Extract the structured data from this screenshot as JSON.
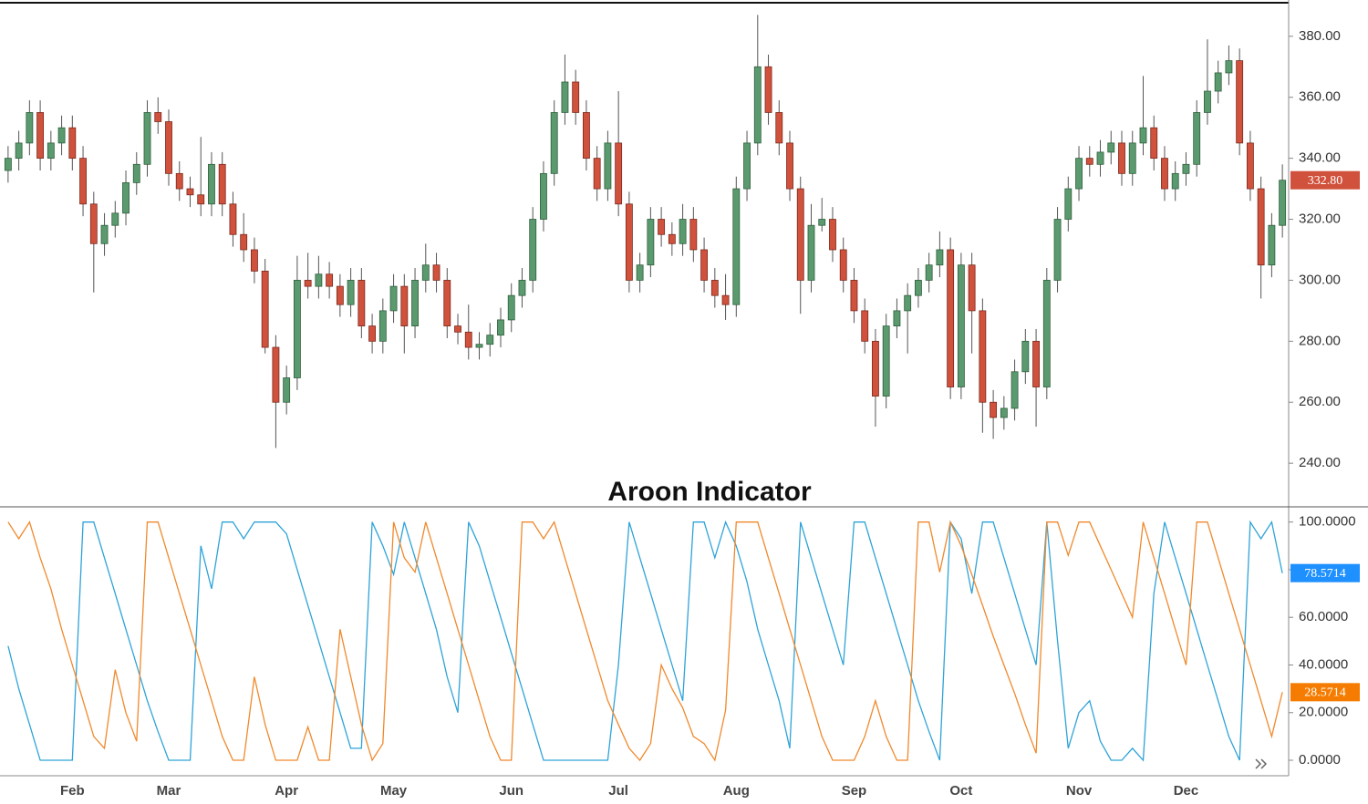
{
  "chart_data": [
    {
      "type": "candlestick",
      "up_color": "#5b9a6f",
      "down_color": "#d0513c",
      "ylim": [
        226,
        391
      ],
      "yticks": [
        {
          "value": 240,
          "label": "240.00"
        },
        {
          "value": 260,
          "label": "260.00"
        },
        {
          "value": 280,
          "label": "280.00"
        },
        {
          "value": 300,
          "label": "300.00"
        },
        {
          "value": 320,
          "label": "320.00"
        },
        {
          "value": 340,
          "label": "340.00"
        },
        {
          "value": 360,
          "label": "360.00"
        },
        {
          "value": 380,
          "label": "380.00"
        }
      ],
      "last_price": {
        "value": 332.8,
        "label": "332.80"
      },
      "ohlc": [
        [
          336,
          344,
          332,
          340
        ],
        [
          340,
          349,
          336,
          345
        ],
        [
          345,
          359,
          341,
          355
        ],
        [
          355,
          359,
          336,
          340
        ],
        [
          340,
          349,
          336,
          345
        ],
        [
          345,
          354,
          341,
          350
        ],
        [
          350,
          354,
          336,
          340
        ],
        [
          340,
          344,
          321,
          325
        ],
        [
          325,
          329,
          296,
          312
        ],
        [
          312,
          322,
          308,
          318
        ],
        [
          318,
          326,
          314,
          322
        ],
        [
          322,
          336,
          318,
          332
        ],
        [
          332,
          342,
          328,
          338
        ],
        [
          338,
          359,
          334,
          355
        ],
        [
          355,
          360,
          348,
          352
        ],
        [
          352,
          356,
          331,
          335
        ],
        [
          335,
          339,
          326,
          330
        ],
        [
          330,
          334,
          324,
          328
        ],
        [
          328,
          347,
          321,
          325
        ],
        [
          325,
          342,
          321,
          338
        ],
        [
          338,
          342,
          321,
          325
        ],
        [
          325,
          329,
          311,
          315
        ],
        [
          315,
          322,
          306,
          310
        ],
        [
          310,
          314,
          299,
          303
        ],
        [
          303,
          307,
          276,
          278
        ],
        [
          278,
          282,
          245,
          260
        ],
        [
          260,
          272,
          256,
          268
        ],
        [
          268,
          308,
          264,
          300
        ],
        [
          300,
          309,
          294,
          298
        ],
        [
          298,
          308,
          294,
          302
        ],
        [
          302,
          306,
          294,
          298
        ],
        [
          298,
          302,
          288,
          292
        ],
        [
          292,
          304,
          288,
          300
        ],
        [
          300,
          304,
          281,
          285
        ],
        [
          285,
          289,
          276,
          280
        ],
        [
          280,
          294,
          276,
          290
        ],
        [
          290,
          302,
          286,
          298
        ],
        [
          298,
          302,
          276,
          285
        ],
        [
          285,
          304,
          281,
          300
        ],
        [
          300,
          312,
          296,
          305
        ],
        [
          305,
          309,
          296,
          300
        ],
        [
          300,
          304,
          281,
          285
        ],
        [
          285,
          289,
          279,
          283
        ],
        [
          283,
          292,
          274,
          278
        ],
        [
          278,
          283,
          274,
          279
        ],
        [
          279,
          286,
          275,
          282
        ],
        [
          282,
          291,
          278,
          287
        ],
        [
          287,
          299,
          283,
          295
        ],
        [
          295,
          304,
          291,
          300
        ],
        [
          300,
          324,
          296,
          320
        ],
        [
          320,
          339,
          316,
          335
        ],
        [
          335,
          359,
          331,
          355
        ],
        [
          355,
          374,
          351,
          365
        ],
        [
          365,
          369,
          351,
          355
        ],
        [
          355,
          359,
          336,
          340
        ],
        [
          340,
          344,
          326,
          330
        ],
        [
          330,
          349,
          326,
          345
        ],
        [
          345,
          362,
          321,
          325
        ],
        [
          325,
          329,
          296,
          300
        ],
        [
          300,
          309,
          296,
          305
        ],
        [
          305,
          324,
          301,
          320
        ],
        [
          320,
          324,
          311,
          315
        ],
        [
          315,
          319,
          308,
          312
        ],
        [
          312,
          325,
          308,
          320
        ],
        [
          320,
          324,
          306,
          310
        ],
        [
          310,
          314,
          296,
          300
        ],
        [
          300,
          304,
          291,
          295
        ],
        [
          295,
          302,
          287,
          292
        ],
        [
          292,
          334,
          288,
          330
        ],
        [
          330,
          349,
          326,
          345
        ],
        [
          345,
          387,
          341,
          370
        ],
        [
          370,
          374,
          351,
          355
        ],
        [
          355,
          359,
          341,
          345
        ],
        [
          345,
          349,
          326,
          330
        ],
        [
          330,
          334,
          289,
          300
        ],
        [
          300,
          325,
          296,
          318
        ],
        [
          318,
          327,
          316,
          320
        ],
        [
          320,
          324,
          306,
          310
        ],
        [
          310,
          314,
          296,
          300
        ],
        [
          300,
          304,
          286,
          290
        ],
        [
          290,
          294,
          276,
          280
        ],
        [
          280,
          284,
          252,
          262
        ],
        [
          262,
          289,
          258,
          285
        ],
        [
          285,
          294,
          281,
          290
        ],
        [
          290,
          299,
          276,
          295
        ],
        [
          295,
          304,
          291,
          300
        ],
        [
          300,
          309,
          296,
          305
        ],
        [
          305,
          316,
          301,
          310
        ],
        [
          310,
          314,
          261,
          265
        ],
        [
          265,
          309,
          261,
          305
        ],
        [
          305,
          309,
          276,
          290
        ],
        [
          290,
          294,
          250,
          260
        ],
        [
          260,
          264,
          248,
          255
        ],
        [
          255,
          262,
          251,
          258
        ],
        [
          258,
          274,
          254,
          270
        ],
        [
          270,
          284,
          266,
          280
        ],
        [
          280,
          284,
          252,
          265
        ],
        [
          265,
          304,
          261,
          300
        ],
        [
          300,
          324,
          296,
          320
        ],
        [
          320,
          334,
          316,
          330
        ],
        [
          330,
          344,
          326,
          340
        ],
        [
          340,
          344,
          334,
          338
        ],
        [
          338,
          346,
          334,
          342
        ],
        [
          342,
          349,
          338,
          345
        ],
        [
          345,
          349,
          331,
          335
        ],
        [
          335,
          349,
          331,
          345
        ],
        [
          345,
          367,
          341,
          350
        ],
        [
          350,
          354,
          336,
          340
        ],
        [
          340,
          344,
          326,
          330
        ],
        [
          330,
          339,
          326,
          335
        ],
        [
          335,
          342,
          331,
          338
        ],
        [
          338,
          359,
          334,
          355
        ],
        [
          355,
          379,
          351,
          362
        ],
        [
          362,
          372,
          358,
          368
        ],
        [
          368,
          377,
          364,
          372
        ],
        [
          372,
          376,
          341,
          345
        ],
        [
          345,
          349,
          326,
          330
        ],
        [
          330,
          334,
          294,
          305
        ],
        [
          305,
          322,
          301,
          318
        ],
        [
          318,
          338,
          314,
          332.8
        ]
      ]
    },
    {
      "type": "line",
      "title": "Aroon Indicator",
      "ylim": [
        -6.5,
        106
      ],
      "yticks": [
        {
          "value": 0,
          "label": "0.0000"
        },
        {
          "value": 20,
          "label": "20.0000"
        },
        {
          "value": 40,
          "label": "40.0000"
        },
        {
          "value": 60,
          "label": "60.0000"
        },
        {
          "value": 80,
          "label": "80.0000"
        },
        {
          "value": 100,
          "label": "100.0000"
        }
      ],
      "categories": [
        null,
        null,
        null,
        null,
        null,
        null,
        "Feb",
        null,
        null,
        null,
        null,
        null,
        null,
        null,
        null,
        "Mar",
        null,
        null,
        null,
        null,
        null,
        null,
        null,
        null,
        null,
        null,
        "Apr",
        null,
        null,
        null,
        null,
        null,
        null,
        null,
        null,
        null,
        "May",
        null,
        null,
        null,
        null,
        null,
        null,
        null,
        null,
        null,
        null,
        "Jun",
        null,
        null,
        null,
        null,
        null,
        null,
        null,
        null,
        null,
        "Jul",
        null,
        null,
        null,
        null,
        null,
        null,
        null,
        null,
        null,
        null,
        "Aug",
        null,
        null,
        null,
        null,
        null,
        null,
        null,
        null,
        null,
        null,
        "Sep",
        null,
        null,
        null,
        null,
        null,
        null,
        null,
        null,
        null,
        "Oct",
        null,
        null,
        null,
        null,
        null,
        null,
        null,
        null,
        null,
        null,
        "Nov",
        null,
        null,
        null,
        null,
        null,
        null,
        null,
        null,
        null,
        "Dec",
        null,
        null,
        null,
        null,
        null,
        null,
        null,
        null,
        null
      ],
      "series": [
        {
          "color": "#2ea3d8",
          "last_value": {
            "value": 78.5714,
            "label": "78.5714"
          },
          "tag_color": "#1e90ff",
          "values": [
            48,
            30,
            15,
            0,
            0,
            0,
            0,
            100,
            100,
            85,
            70,
            55,
            40,
            25,
            12,
            0,
            0,
            0,
            90,
            72,
            100,
            100,
            93,
            100,
            100,
            100,
            95,
            80,
            65,
            50,
            35,
            20,
            5,
            5,
            100,
            90,
            78,
            100,
            85,
            70,
            55,
            35,
            20,
            100,
            90,
            75,
            60,
            45,
            30,
            15,
            0,
            0,
            0,
            0,
            0,
            0,
            0,
            40,
            100,
            85,
            70,
            55,
            40,
            25,
            100,
            100,
            85,
            100,
            90,
            75,
            55,
            40,
            25,
            5,
            100,
            85,
            70,
            55,
            40,
            100,
            100,
            85,
            70,
            55,
            40,
            25,
            12,
            0,
            100,
            93,
            70,
            100,
            100,
            85,
            70,
            55,
            40,
            100,
            50,
            5,
            20,
            25,
            8,
            0,
            0,
            5,
            0,
            70,
            100,
            85,
            70,
            55,
            40,
            25,
            10,
            0,
            100,
            93,
            100,
            78.5714
          ]
        },
        {
          "color": "#f0892c",
          "last_value": {
            "value": 28.5714,
            "label": "28.5714"
          },
          "tag_color": "#f57c00",
          "values": [
            100,
            93,
            100,
            85,
            72,
            55,
            40,
            25,
            10,
            5,
            38,
            20,
            8,
            100,
            100,
            85,
            70,
            55,
            40,
            25,
            10,
            0,
            0,
            35,
            15,
            0,
            0,
            0,
            14,
            0,
            0,
            55,
            35,
            15,
            0,
            7,
            100,
            85,
            79,
            100,
            85,
            70,
            55,
            40,
            25,
            10,
            0,
            0,
            100,
            100,
            93,
            100,
            85,
            70,
            55,
            40,
            25,
            15,
            5,
            0,
            7,
            40,
            30,
            22,
            10,
            7,
            0,
            21,
            100,
            100,
            100,
            85,
            70,
            55,
            40,
            25,
            10,
            0,
            0,
            0,
            10,
            25,
            10,
            0,
            0,
            100,
            100,
            79,
            100,
            90,
            78,
            65,
            52,
            40,
            28,
            15,
            3,
            100,
            100,
            86,
            100,
            100,
            90,
            80,
            70,
            60,
            100,
            85,
            70,
            55,
            40,
            100,
            100,
            85,
            70,
            55,
            40,
            25,
            10,
            28.5714
          ]
        }
      ]
    }
  ]
}
